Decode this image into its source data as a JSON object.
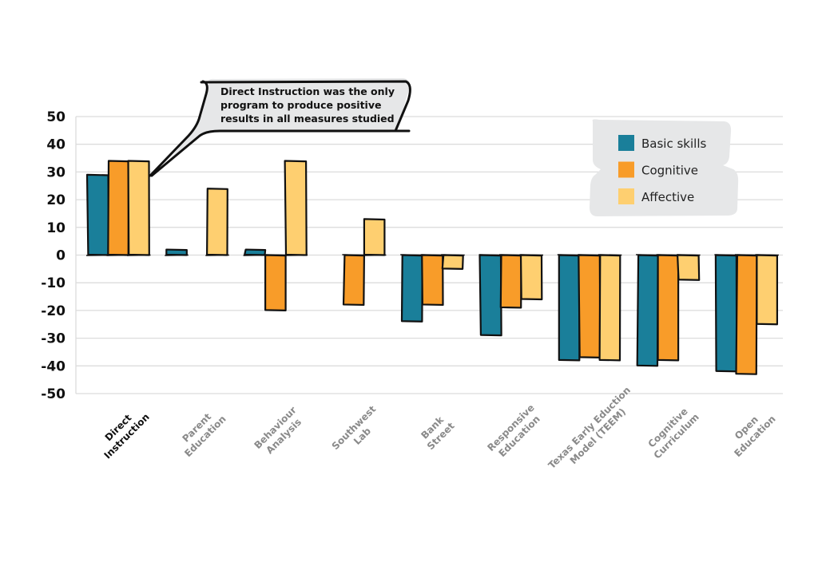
{
  "chart_data": {
    "type": "bar",
    "title": "",
    "xlabel": "",
    "ylabel": "",
    "ylim": [
      -50,
      50
    ],
    "yticks": [
      50,
      40,
      30,
      20,
      10,
      0,
      -10,
      -20,
      -30,
      -40,
      -50
    ],
    "grid": true,
    "legend_position": "top-right",
    "categories": [
      [
        "Direct",
        "Instruction"
      ],
      [
        "Parent",
        "Education"
      ],
      [
        "Behaviour",
        "Analysis"
      ],
      [
        "Southwest",
        "Lab"
      ],
      [
        "Bank",
        "Street"
      ],
      [
        "Responsive",
        "Education"
      ],
      [
        "Texas Early Eduction",
        "Model (TEEM)"
      ],
      [
        "Cognitive",
        "Curriculum"
      ],
      [
        "Open",
        "Education"
      ]
    ],
    "highlight_category": 0,
    "series": [
      {
        "name": "Basic skills",
        "color": "#1a7f9a",
        "values": [
          29,
          2,
          2,
          null,
          -24,
          -29,
          -38,
          -40,
          -42
        ]
      },
      {
        "name": "Cognitive",
        "color": "#f89c29",
        "values": [
          34,
          null,
          -20,
          -18,
          -18,
          -19,
          -37,
          -38,
          -43
        ]
      },
      {
        "name": "Affective",
        "color": "#fecf70",
        "values": [
          34,
          24,
          34,
          13,
          -5,
          -16,
          -38,
          -9,
          -25
        ]
      }
    ],
    "annotation": {
      "lines": [
        "Direct Instruction was the only",
        "program to produce positive",
        "results in all measures studied"
      ],
      "target_category": 0
    }
  },
  "colors": {
    "grid": "#dcdcdc",
    "highlight_label": "#111111",
    "muted_label": "#8a8a8a",
    "bubble_fill": "#e6e7e8"
  }
}
